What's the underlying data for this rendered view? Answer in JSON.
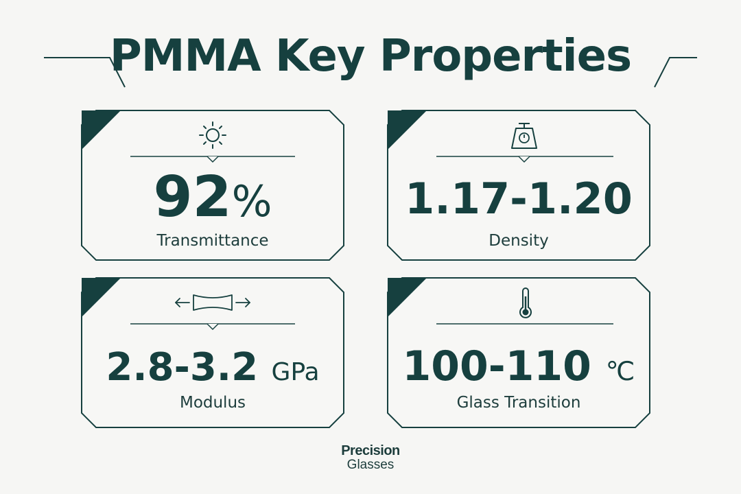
{
  "title": "PMMA Key Properties",
  "colors": {
    "primary": "#16403f",
    "background": "#f6f6f4"
  },
  "cards": [
    {
      "icon": "sun-icon",
      "value": "92",
      "unit": "%",
      "label": "Transmittance"
    },
    {
      "icon": "scale-icon",
      "value": "1.17-1.20",
      "unit": "",
      "label": "Density"
    },
    {
      "icon": "stretch-arrows-icon",
      "value": "2.8-3.2",
      "unit": "GPa",
      "label": "Modulus"
    },
    {
      "icon": "thermometer-icon",
      "value": "100-110",
      "unit": "℃",
      "label": "Glass Transition"
    }
  ],
  "brand": {
    "top": "Precision",
    "bottom": "Glasses"
  }
}
